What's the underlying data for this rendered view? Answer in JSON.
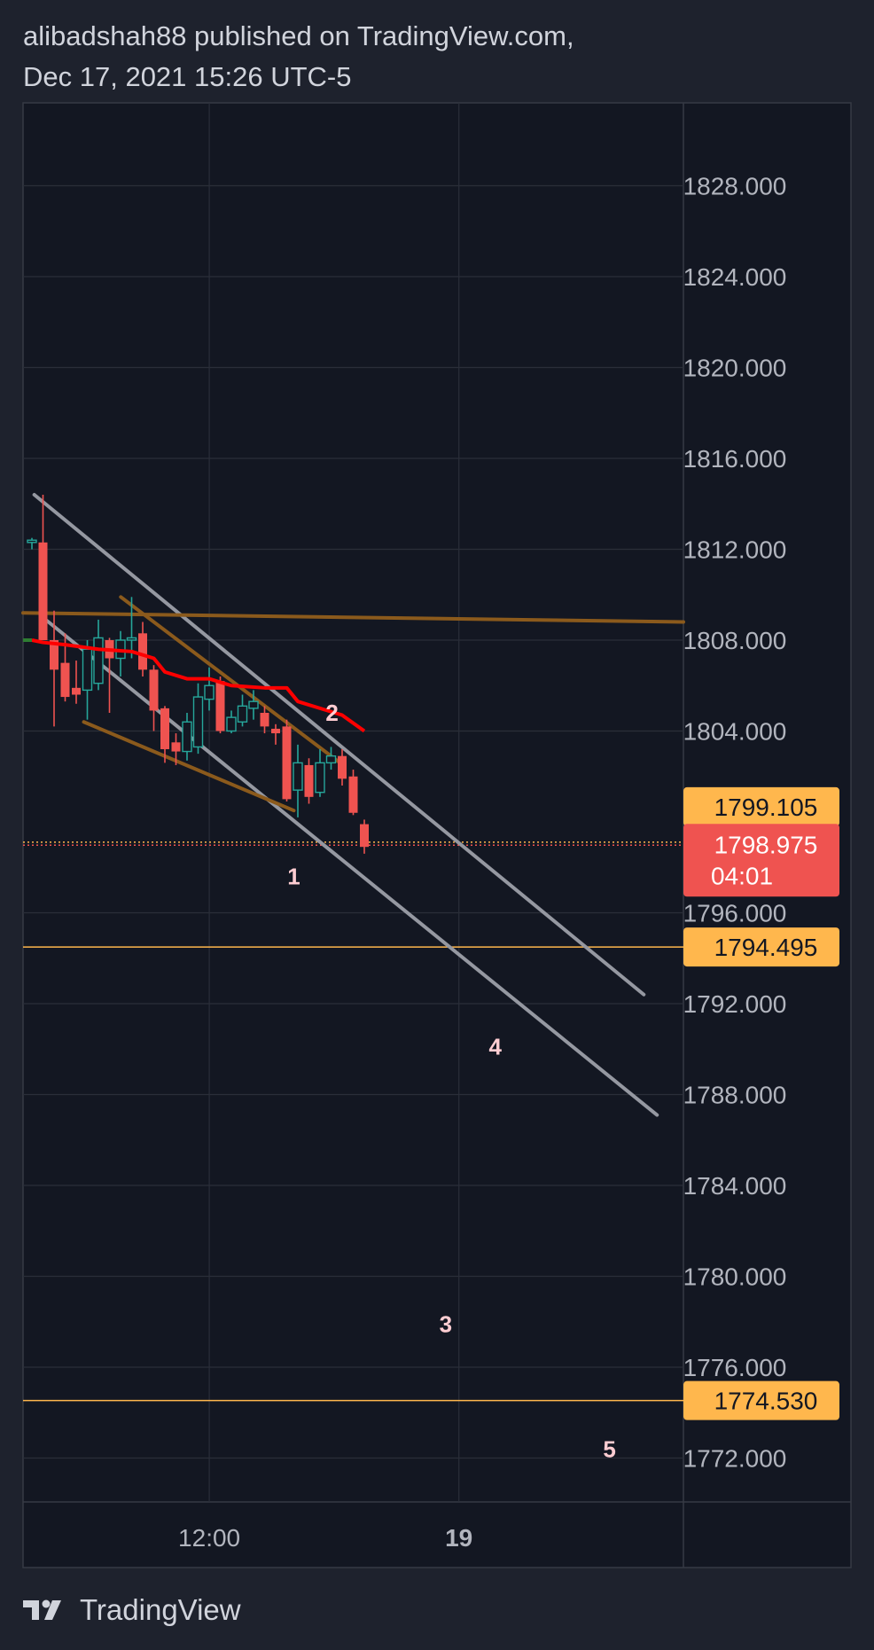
{
  "header": {
    "line1": "alibadshah88 published on TradingView.com,",
    "line2": "Dec 17, 2021 15:26 UTC-5"
  },
  "footer": {
    "brand": "TradingView",
    "logo_icon": "tradingview-logo-icon"
  },
  "colors": {
    "background": "#131722",
    "frame": "#1e222d",
    "grid": "#2a2e39",
    "text": "#d1d4dc",
    "bull": "#26a69a",
    "bear": "#ef5350",
    "ema": "#ff0000",
    "channel_gray": "#9598a1",
    "channel_brown": "#8b5a1c",
    "level_line": "#ffb74d",
    "level_label": "#ffb74d",
    "price_label": "#ef5350",
    "wave_label": "#ffcdd2"
  },
  "chart_data": {
    "type": "candlestick",
    "symbol": "",
    "y_axis": {
      "min": 1770,
      "max": 1830,
      "ticks": [
        "1828.000",
        "1824.000",
        "1820.000",
        "1816.000",
        "1812.000",
        "1808.000",
        "1804.000",
        "1796.000",
        "1792.000",
        "1788.000",
        "1784.000",
        "1780.000",
        "1776.000",
        "1772.000"
      ]
    },
    "x_axis": {
      "ticks": [
        {
          "label": "12:00",
          "bold": false,
          "pos": 0.282
        },
        {
          "label": "19",
          "bold": true,
          "pos": 0.66
        }
      ]
    },
    "price_labels": [
      {
        "value": "1799.105",
        "price": 1799.105,
        "style": "level"
      },
      {
        "value": "1798.975",
        "price": 1798.975,
        "style": "current",
        "countdown": "04:01"
      },
      {
        "value": "1794.495",
        "price": 1794.495,
        "style": "level"
      },
      {
        "value": "1774.530",
        "price": 1774.53,
        "style": "level"
      }
    ],
    "horizontal_levels": [
      1799.105,
      1798.975,
      1794.495,
      1774.53
    ],
    "candles": [
      {
        "o": 1812.3,
        "h": 1812.5,
        "l": 1812.0,
        "c": 1812.4
      },
      {
        "o": 1812.3,
        "h": 1814.4,
        "l": 1808.0,
        "c": 1808.0
      },
      {
        "o": 1808.0,
        "h": 1809.3,
        "l": 1804.2,
        "c": 1806.7
      },
      {
        "o": 1807.0,
        "h": 1808.3,
        "l": 1805.3,
        "c": 1805.5
      },
      {
        "o": 1805.9,
        "h": 1807.1,
        "l": 1805.2,
        "c": 1805.6
      },
      {
        "o": 1805.8,
        "h": 1808.0,
        "l": 1804.5,
        "c": 1807.6
      },
      {
        "o": 1806.1,
        "h": 1808.9,
        "l": 1805.8,
        "c": 1808.1
      },
      {
        "o": 1808.0,
        "h": 1808.1,
        "l": 1804.8,
        "c": 1807.2
      },
      {
        "o": 1807.2,
        "h": 1808.4,
        "l": 1806.4,
        "c": 1808.0
      },
      {
        "o": 1808.0,
        "h": 1809.9,
        "l": 1807.2,
        "c": 1808.1
      },
      {
        "o": 1808.3,
        "h": 1808.8,
        "l": 1806.4,
        "c": 1806.7
      },
      {
        "o": 1806.7,
        "h": 1806.9,
        "l": 1804.0,
        "c": 1804.9
      },
      {
        "o": 1805.0,
        "h": 1805.1,
        "l": 1802.6,
        "c": 1803.2
      },
      {
        "o": 1803.5,
        "h": 1803.9,
        "l": 1802.5,
        "c": 1803.1
      },
      {
        "o": 1803.1,
        "h": 1804.8,
        "l": 1802.7,
        "c": 1804.4
      },
      {
        "o": 1803.3,
        "h": 1806.1,
        "l": 1803.0,
        "c": 1805.5
      },
      {
        "o": 1805.4,
        "h": 1806.8,
        "l": 1804.9,
        "c": 1806.0
      },
      {
        "o": 1806.2,
        "h": 1806.4,
        "l": 1803.9,
        "c": 1804.0
      },
      {
        "o": 1804.0,
        "h": 1804.9,
        "l": 1803.9,
        "c": 1804.6
      },
      {
        "o": 1804.4,
        "h": 1805.6,
        "l": 1804.2,
        "c": 1805.1
      },
      {
        "o": 1805.0,
        "h": 1805.8,
        "l": 1804.5,
        "c": 1805.3
      },
      {
        "o": 1804.8,
        "h": 1805.1,
        "l": 1803.9,
        "c": 1804.2
      },
      {
        "o": 1804.1,
        "h": 1804.3,
        "l": 1803.4,
        "c": 1803.9
      },
      {
        "o": 1804.2,
        "h": 1804.5,
        "l": 1800.9,
        "c": 1801.0
      },
      {
        "o": 1801.4,
        "h": 1803.4,
        "l": 1800.2,
        "c": 1802.6
      },
      {
        "o": 1802.5,
        "h": 1802.8,
        "l": 1800.8,
        "c": 1801.1
      },
      {
        "o": 1801.3,
        "h": 1803.2,
        "l": 1801.1,
        "c": 1802.6
      },
      {
        "o": 1802.6,
        "h": 1803.3,
        "l": 1802.3,
        "c": 1802.9
      },
      {
        "o": 1802.9,
        "h": 1803.2,
        "l": 1801.6,
        "c": 1801.9
      },
      {
        "o": 1802.0,
        "h": 1802.3,
        "l": 1800.3,
        "c": 1800.4
      },
      {
        "o": 1799.9,
        "h": 1800.1,
        "l": 1798.6,
        "c": 1798.9
      }
    ],
    "ema_line": [
      {
        "i": 0,
        "p": 1808.0
      },
      {
        "i": 1,
        "p": 1807.9
      },
      {
        "i": 3,
        "p": 1807.8
      },
      {
        "i": 6,
        "p": 1807.6
      },
      {
        "i": 9,
        "p": 1807.5
      },
      {
        "i": 11,
        "p": 1807.2
      },
      {
        "i": 12,
        "p": 1806.6
      },
      {
        "i": 14,
        "p": 1806.3
      },
      {
        "i": 16,
        "p": 1806.3
      },
      {
        "i": 18,
        "p": 1806.0
      },
      {
        "i": 21,
        "p": 1805.9
      },
      {
        "i": 23,
        "p": 1805.9
      },
      {
        "i": 24,
        "p": 1805.3
      },
      {
        "i": 26,
        "p": 1805.0
      },
      {
        "i": 28,
        "p": 1804.7
      },
      {
        "i": 30,
        "p": 1804.0
      }
    ],
    "trendlines": [
      {
        "name": "upper-gray-channel",
        "color": "gray",
        "from": {
          "x": 0.017,
          "p": 1814.4
        },
        "to": {
          "x": 0.94,
          "p": 1792.4
        }
      },
      {
        "name": "lower-gray-channel",
        "color": "gray",
        "from": {
          "x": 0.03,
          "p": 1809.0
        },
        "to": {
          "x": 0.96,
          "p": 1787.1
        }
      },
      {
        "name": "horizontal-brown",
        "color": "brown",
        "from": {
          "x": 0.0,
          "p": 1809.2
        },
        "to": {
          "x": 1.0,
          "p": 1808.8
        }
      },
      {
        "name": "upper-brown-wedge",
        "color": "brown",
        "from": {
          "x": 0.148,
          "p": 1809.9
        },
        "to": {
          "x": 0.48,
          "p": 1802.6
        }
      },
      {
        "name": "lower-brown-wedge",
        "color": "brown",
        "from": {
          "x": 0.092,
          "p": 1804.4
        },
        "to": {
          "x": 0.41,
          "p": 1800.5
        }
      }
    ],
    "wave_labels": [
      {
        "label": "1",
        "x": 0.41,
        "p": 1797.6
      },
      {
        "label": "2",
        "x": 0.468,
        "p": 1804.8
      },
      {
        "label": "3",
        "x": 0.64,
        "p": 1777.9
      },
      {
        "label": "4",
        "x": 0.715,
        "p": 1790.1
      },
      {
        "label": "5",
        "x": 0.888,
        "p": 1772.4
      }
    ]
  }
}
